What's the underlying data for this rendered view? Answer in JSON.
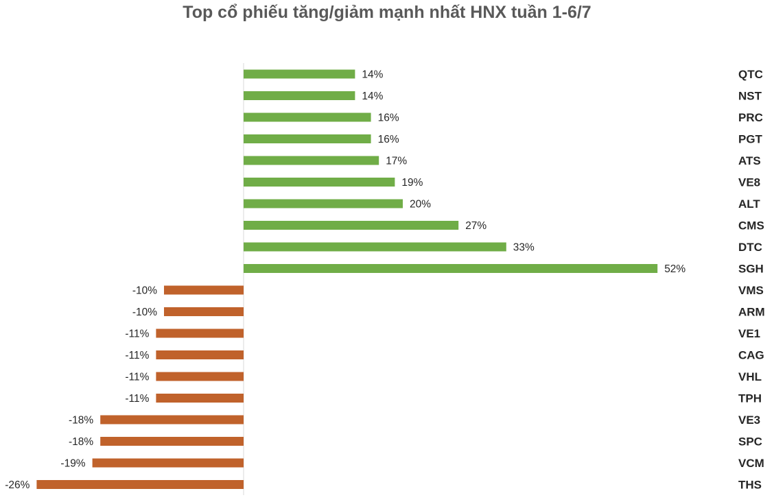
{
  "title": "Top cổ phiếu tăng/giảm mạnh nhất HNX tuần 1-6/7",
  "colors": {
    "positive": "#70AD47",
    "negative": "#C0622B",
    "axis": "#D9D9D9"
  },
  "chart_data": {
    "type": "bar",
    "orientation": "horizontal",
    "title": "Top cổ phiếu tăng/giảm mạnh nhất HNX tuần 1-6/7",
    "categories": [
      "QTC",
      "NST",
      "PRC",
      "PGT",
      "ATS",
      "VE8",
      "ALT",
      "CMS",
      "DTC",
      "SGH",
      "VMS",
      "ARM",
      "VE1",
      "CAG",
      "VHL",
      "TPH",
      "VE3",
      "SPC",
      "VCM",
      "THS"
    ],
    "values": [
      14,
      14,
      16,
      16,
      17,
      19,
      20,
      27,
      33,
      52,
      -10,
      -10,
      -11,
      -11,
      -11,
      -11,
      -18,
      -18,
      -19,
      -26
    ],
    "labels": [
      "14%",
      "14%",
      "16%",
      "16%",
      "17%",
      "19%",
      "20%",
      "27%",
      "33%",
      "52%",
      "-10%",
      "-10%",
      "-11%",
      "-11%",
      "-11%",
      "-11%",
      "-18%",
      "-18%",
      "-19%",
      "-26%"
    ],
    "unit": "%",
    "xlim": [
      -26,
      52
    ],
    "category_axis_position": "right",
    "grid": false,
    "legend": "none"
  }
}
